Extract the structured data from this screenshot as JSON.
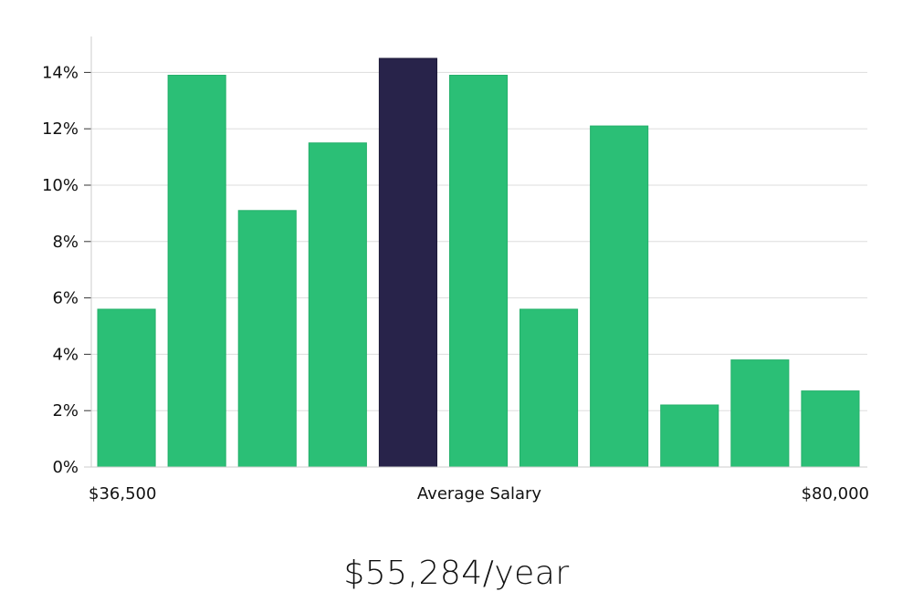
{
  "chart_data": {
    "type": "bar",
    "ylabel": "",
    "xlabel": "Average Salary",
    "x_left_label": "$36,500",
    "x_right_label": "$80,000",
    "ylim": [
      0,
      15
    ],
    "yticks": [
      0,
      2,
      4,
      6,
      8,
      10,
      12,
      14
    ],
    "ytick_suffix": "%",
    "values": [
      5.6,
      13.9,
      9.1,
      11.5,
      14.5,
      13.9,
      5.6,
      12.1,
      2.2,
      3.8,
      2.7
    ],
    "highlight_index": 4,
    "colors": {
      "bar": "#2bbf76",
      "highlight": "#28234a",
      "grid": "#dddddd",
      "axis": "#cccccc"
    }
  },
  "footer": {
    "salary": "$55,284/year"
  }
}
